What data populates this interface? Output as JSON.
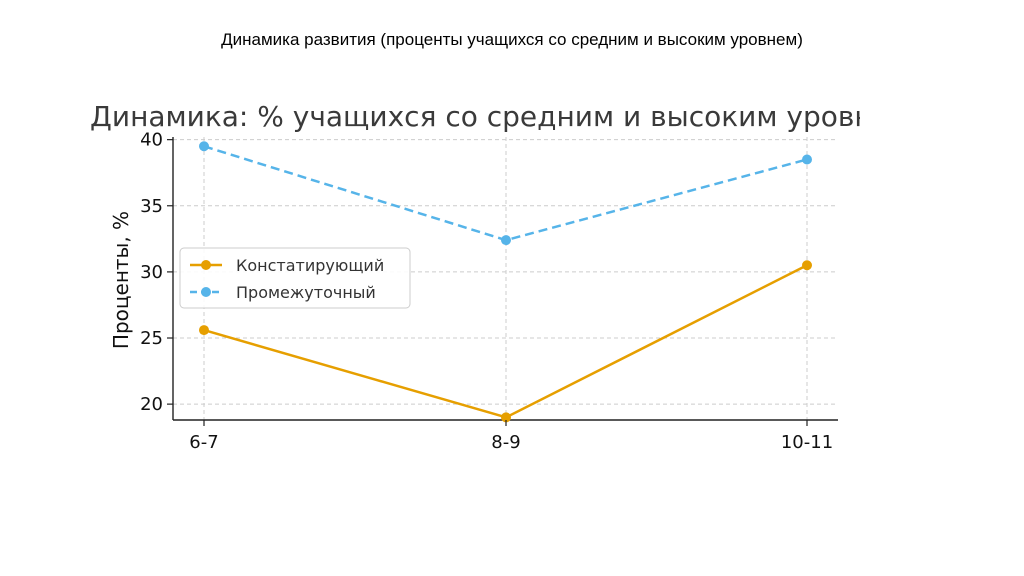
{
  "page": {
    "title": "Динамика развития (проценты учащихся со средним и высоким уровнем)"
  },
  "chart_data": {
    "type": "line",
    "title": "Динамика: % учащихся со средним и высоким уровнем",
    "xlabel": "",
    "ylabel": "Проценты, %",
    "categories": [
      "6-7",
      "8-9",
      "10-11"
    ],
    "y_ticks": [
      "20",
      "25",
      "30",
      "35",
      "40"
    ],
    "ylim": [
      18.8,
      40.2
    ],
    "grid": true,
    "legend_position": "center-left",
    "series": [
      {
        "name": "Констатирующий",
        "values": [
          25.6,
          19.0,
          30.5
        ],
        "color": "#e69f00",
        "line_style": "solid",
        "marker": "circle"
      },
      {
        "name": "Промежуточный",
        "values": [
          39.5,
          32.4,
          38.5
        ],
        "color": "#56b4e9",
        "line_style": "dashed",
        "marker": "circle"
      }
    ]
  }
}
